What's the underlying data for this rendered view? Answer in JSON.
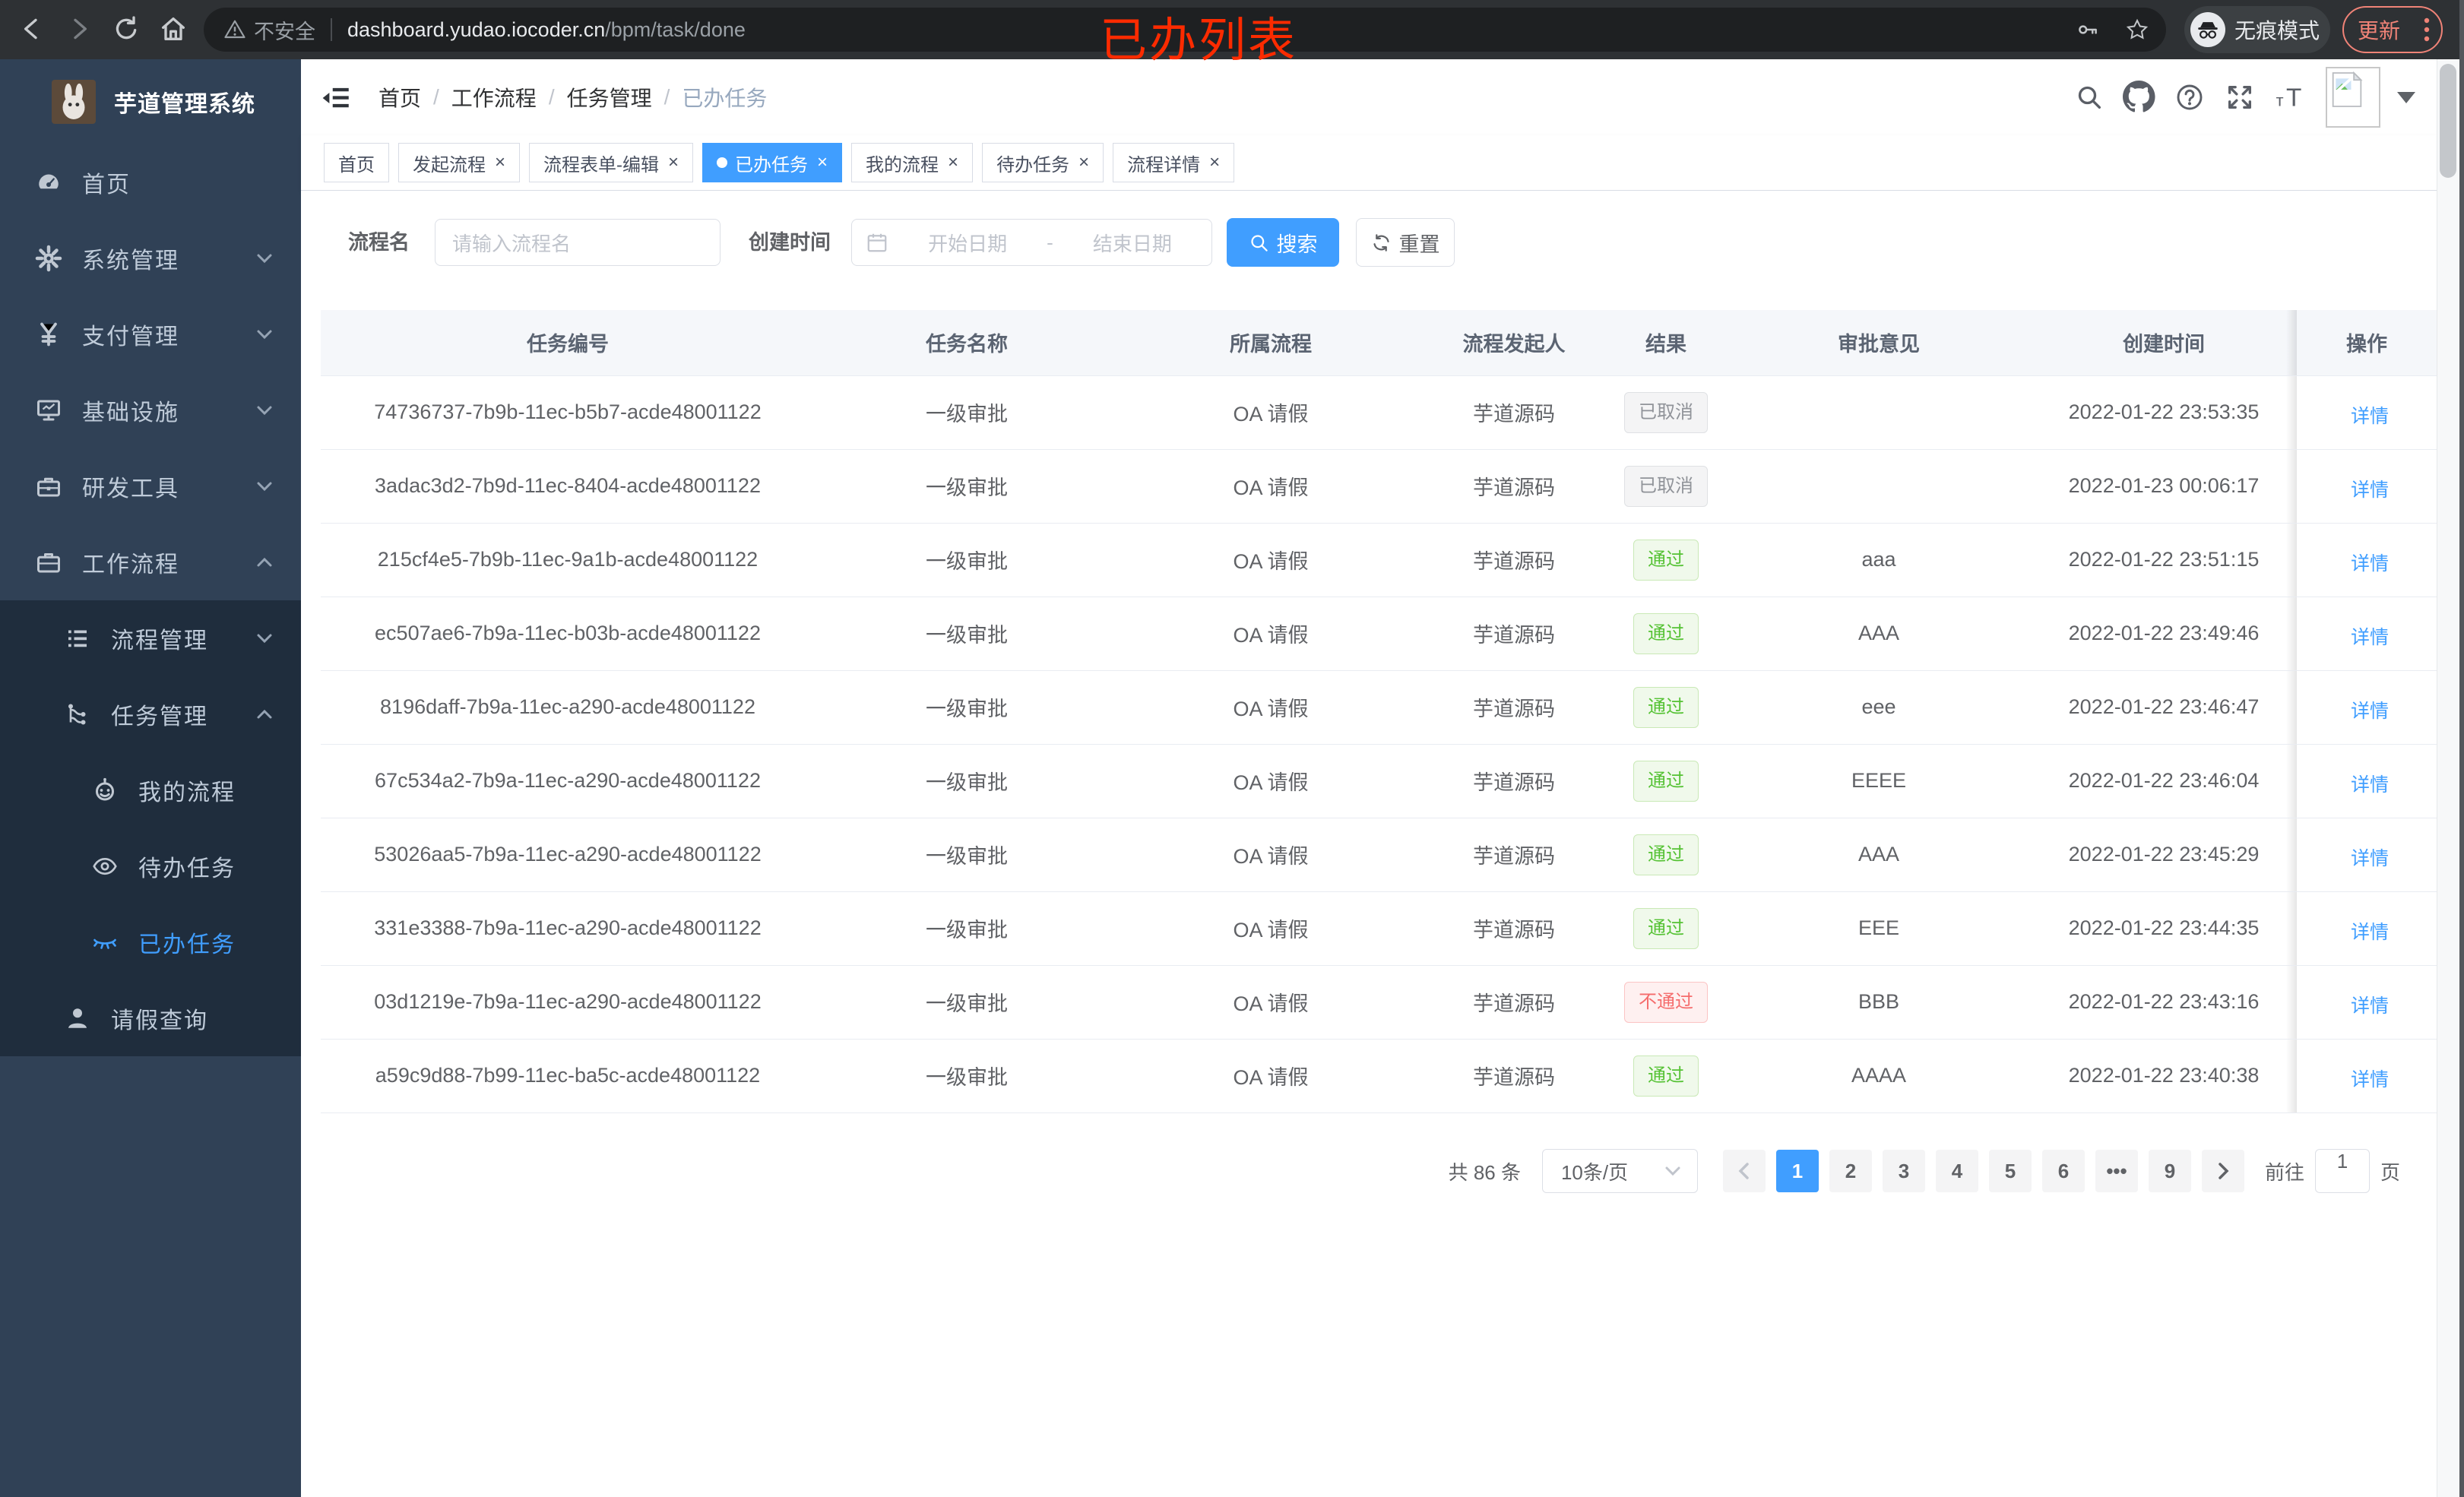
{
  "browser": {
    "insecure_label": "不安全",
    "url_host": "dashboard.yudao.iocoder.cn",
    "url_path": "/bpm/task/done",
    "incognito_label": "无痕模式",
    "update_label": "更新"
  },
  "annotation": "已办列表",
  "colors": {
    "accent": "#409eff",
    "sidebar_bg": "#304156",
    "submenu_bg": "#1f2d3d",
    "active_tab_bg": "#409eff",
    "success_text": "#55c234",
    "danger_text": "#f56c6c",
    "info_text": "#909399",
    "annotation_red": "#fb2b00"
  },
  "sidebar": {
    "title": "芋道管理系统",
    "items": [
      {
        "label": "首页",
        "icon": "dashboard-icon",
        "indent": 1
      },
      {
        "label": "系统管理",
        "icon": "gear-icon",
        "indent": 1,
        "chevron": "down"
      },
      {
        "label": "支付管理",
        "icon": "yen-icon",
        "indent": 1,
        "chevron": "down"
      },
      {
        "label": "基础设施",
        "icon": "monitor-icon",
        "indent": 1,
        "chevron": "down"
      },
      {
        "label": "研发工具",
        "icon": "toolbox-icon",
        "indent": 1,
        "chevron": "down"
      },
      {
        "label": "工作流程",
        "icon": "briefcase-icon",
        "indent": 1,
        "chevron": "up"
      },
      {
        "label": "流程管理",
        "icon": "list-icon",
        "indent": 2,
        "chevron": "down",
        "dark": true
      },
      {
        "label": "任务管理",
        "icon": "tree-icon",
        "indent": 2,
        "chevron": "up",
        "dark": true
      },
      {
        "label": "我的流程",
        "icon": "robot-icon",
        "indent": 3,
        "dark": true
      },
      {
        "label": "待办任务",
        "icon": "eye-icon",
        "indent": 3,
        "dark": true
      },
      {
        "label": "已办任务",
        "icon": "eye-closed-icon",
        "indent": 3,
        "dark": true,
        "active": true
      },
      {
        "label": "请假查询",
        "icon": "user-icon",
        "indent": 2,
        "dark": true
      }
    ]
  },
  "breadcrumb": [
    "首页",
    "工作流程",
    "任务管理",
    "已办任务"
  ],
  "tabs": [
    {
      "label": "首页"
    },
    {
      "label": "发起流程",
      "closable": true
    },
    {
      "label": "流程表单-编辑",
      "closable": true
    },
    {
      "label": "已办任务",
      "closable": true,
      "active": true
    },
    {
      "label": "我的流程",
      "closable": true
    },
    {
      "label": "待办任务",
      "closable": true
    },
    {
      "label": "流程详情",
      "closable": true
    }
  ],
  "filters": {
    "name_label": "流程名",
    "name_placeholder": "请输入流程名",
    "time_label": "创建时间",
    "start_placeholder": "开始日期",
    "range_separator": "-",
    "end_placeholder": "结束日期",
    "search_label": "搜索",
    "reset_label": "重置"
  },
  "table": {
    "columns": [
      "任务编号",
      "任务名称",
      "所属流程",
      "流程发起人",
      "结果",
      "审批意见",
      "创建时间",
      "操作"
    ],
    "detail_label": "详情",
    "rows": [
      {
        "id": "74736737-7b9b-11ec-b5b7-acde48001122",
        "name": "一级审批",
        "process": "OA 请假",
        "starter": "芋道源码",
        "result": "已取消",
        "result_type": "info",
        "comment": "",
        "created": "2022-01-22 23:53:35"
      },
      {
        "id": "3adac3d2-7b9d-11ec-8404-acde48001122",
        "name": "一级审批",
        "process": "OA 请假",
        "starter": "芋道源码",
        "result": "已取消",
        "result_type": "info",
        "comment": "",
        "created": "2022-01-23 00:06:17"
      },
      {
        "id": "215cf4e5-7b9b-11ec-9a1b-acde48001122",
        "name": "一级审批",
        "process": "OA 请假",
        "starter": "芋道源码",
        "result": "通过",
        "result_type": "success",
        "comment": "aaa",
        "created": "2022-01-22 23:51:15"
      },
      {
        "id": "ec507ae6-7b9a-11ec-b03b-acde48001122",
        "name": "一级审批",
        "process": "OA 请假",
        "starter": "芋道源码",
        "result": "通过",
        "result_type": "success",
        "comment": "AAA",
        "created": "2022-01-22 23:49:46"
      },
      {
        "id": "8196daff-7b9a-11ec-a290-acde48001122",
        "name": "一级审批",
        "process": "OA 请假",
        "starter": "芋道源码",
        "result": "通过",
        "result_type": "success",
        "comment": "eee",
        "created": "2022-01-22 23:46:47"
      },
      {
        "id": "67c534a2-7b9a-11ec-a290-acde48001122",
        "name": "一级审批",
        "process": "OA 请假",
        "starter": "芋道源码",
        "result": "通过",
        "result_type": "success",
        "comment": "EEEE",
        "created": "2022-01-22 23:46:04"
      },
      {
        "id": "53026aa5-7b9a-11ec-a290-acde48001122",
        "name": "一级审批",
        "process": "OA 请假",
        "starter": "芋道源码",
        "result": "通过",
        "result_type": "success",
        "comment": "AAA",
        "created": "2022-01-22 23:45:29"
      },
      {
        "id": "331e3388-7b9a-11ec-a290-acde48001122",
        "name": "一级审批",
        "process": "OA 请假",
        "starter": "芋道源码",
        "result": "通过",
        "result_type": "success",
        "comment": "EEE",
        "created": "2022-01-22 23:44:35"
      },
      {
        "id": "03d1219e-7b9a-11ec-a290-acde48001122",
        "name": "一级审批",
        "process": "OA 请假",
        "starter": "芋道源码",
        "result": "不通过",
        "result_type": "danger",
        "comment": "BBB",
        "created": "2022-01-22 23:43:16"
      },
      {
        "id": "a59c9d88-7b99-11ec-ba5c-acde48001122",
        "name": "一级审批",
        "process": "OA 请假",
        "starter": "芋道源码",
        "result": "通过",
        "result_type": "success",
        "comment": "AAAA",
        "created": "2022-01-22 23:40:38"
      }
    ]
  },
  "pagination": {
    "total_label": "共 86 条",
    "page_size": "10条/页",
    "pages": [
      "1",
      "2",
      "3",
      "4",
      "5",
      "6",
      "•••",
      "9"
    ],
    "active_page": "1",
    "goto_label": "前往",
    "goto_value": "1",
    "page_unit": "页"
  }
}
